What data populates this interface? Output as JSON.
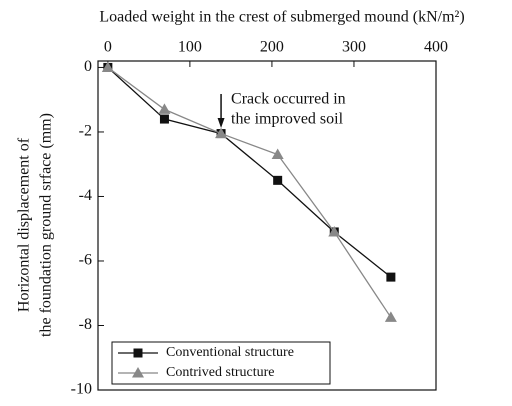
{
  "chart_data": {
    "type": "line",
    "title": "Loaded weight in the crest of submerged mound (kN/m²)",
    "ylabel": [
      "Horizontal displacement of",
      "the foundation ground srface (mm)"
    ],
    "annotation": {
      "x": 138,
      "text": [
        "Crack occurred in",
        "the improved soil"
      ]
    },
    "x": [
      0,
      69,
      138,
      207,
      276,
      345
    ],
    "series": [
      {
        "name": "Conventional structure",
        "color": "#111111",
        "marker": "square",
        "values": [
          0,
          -1.6,
          -2.05,
          -3.5,
          -5.1,
          -6.5
        ]
      },
      {
        "name": "Contrived structure",
        "color": "#888888",
        "marker": "triangle",
        "values": [
          0,
          -1.3,
          -2.05,
          -2.7,
          -5.1,
          -7.75
        ]
      }
    ],
    "xlim": [
      -12,
      400
    ],
    "xticks": [
      0,
      100,
      200,
      300,
      400
    ],
    "xaxis_position": "top",
    "ylim": [
      -10,
      0.2
    ],
    "yticks": [
      0,
      -2,
      -4,
      -6,
      -8,
      -10
    ],
    "legend": "lower left",
    "grid": false
  }
}
